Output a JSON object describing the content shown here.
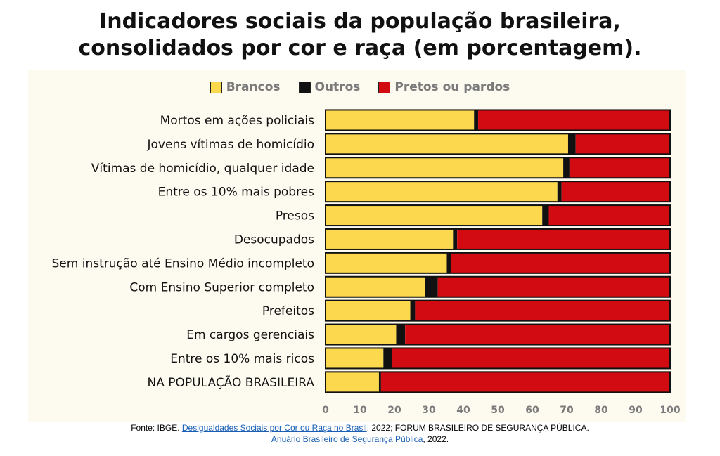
{
  "title_line1": "Indicadores sociais da população brasileira,",
  "title_line2": "consolidados por cor e raça (em porcentagem).",
  "colors": {
    "brancos": "#fbd84d",
    "outros": "#111111",
    "pretos": "#d20a11",
    "axis_text": "#7a7a7a"
  },
  "chart_data": {
    "type": "bar",
    "orientation": "horizontal",
    "stacked": true,
    "categories": [
      "Mortos em ações policiais",
      "Jovens vítimas de homicídio",
      "Vítimas de homicídio, qualquer idade",
      "Entre os 10% mais pobres",
      "Presos",
      "Desocupados",
      "Sem instrução até Ensino Médio incompleto",
      "Com Ensino Superior completo",
      "Prefeitos",
      "Em cargos gerenciais",
      "Entre os 10% mais ricos",
      "NA POPULAÇÃO BRASILEIRA"
    ],
    "series": [
      {
        "name": "Brancos",
        "values": [
          43.1,
          70.4,
          69.0,
          67.3,
          62.9,
          37.0,
          35.2,
          28.8,
          24.6,
          20.5,
          16.8,
          15.5
        ]
      },
      {
        "name": "Outros",
        "values": [
          1.2,
          2.2,
          1.8,
          1.2,
          1.9,
          1.2,
          1.2,
          3.8,
          1.4,
          2.6,
          2.5,
          0.6
        ]
      },
      {
        "name": "Pretos ou pardos",
        "values": [
          55.7,
          27.4,
          29.2,
          31.5,
          35.2,
          61.8,
          63.6,
          67.4,
          74.0,
          76.9,
          80.7,
          83.9
        ]
      }
    ],
    "xlim": [
      0,
      100
    ],
    "xticks": [
      0,
      10,
      20,
      30,
      40,
      50,
      60,
      70,
      80,
      90,
      100
    ],
    "legend_position": "top"
  },
  "legend": {
    "items": [
      {
        "label": "Brancos",
        "color": "#fbd84d"
      },
      {
        "label": "Outros",
        "color": "#111111"
      },
      {
        "label": "Pretos ou pardos",
        "color": "#d20a11"
      }
    ]
  },
  "footer": {
    "prefix": "Fonte: IBGE. ",
    "link1": "Desigualdades Sociais por Cor ou Raça no Brasil",
    "mid": ", 2022; FORUM BRASILEIRO DE SEGURANÇA PÚBLICA.",
    "link2": "Anuário Brasileiro de Segurança Pública",
    "suffix": ", 2022."
  }
}
